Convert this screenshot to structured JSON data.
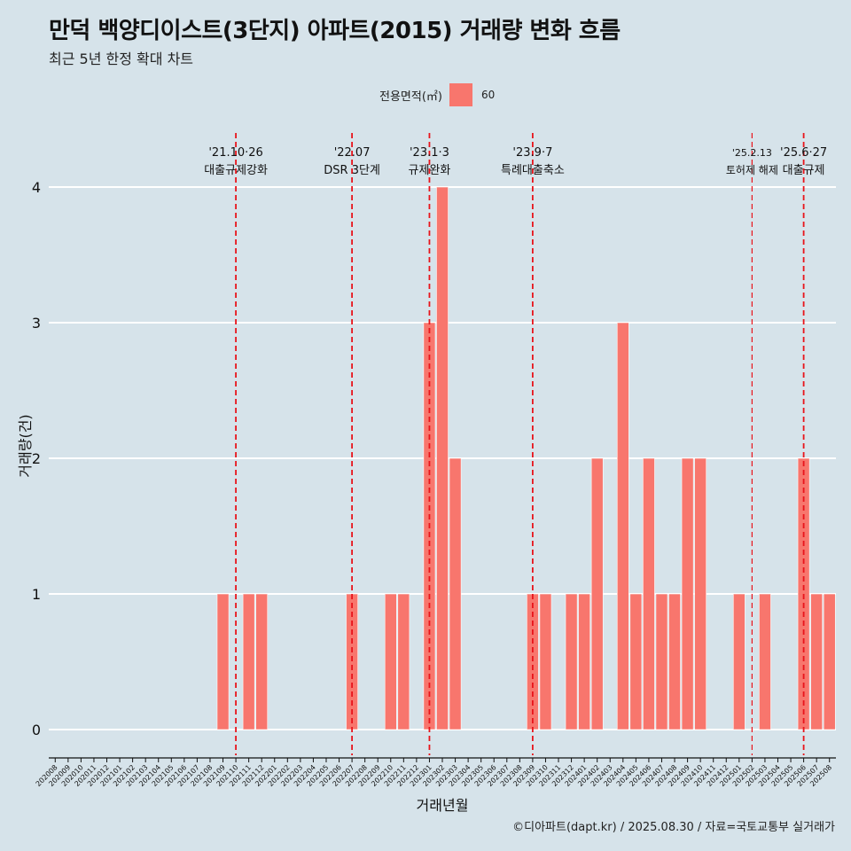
{
  "title": "만덕 백양디이스트(3단지) 아파트(2015) 거래량 변화 흐름",
  "subtitle": "최근 5년 한정 확대 차트",
  "legend": {
    "title": "전용면적(㎡)",
    "label": "60",
    "color": "#f8766d"
  },
  "caption": "©디아파트(dapt.kr) / 2025.08.30 / 자료=국토교통부 실거래가",
  "chart_data": {
    "type": "bar",
    "title": "만덕 백양디이스트(3단지) 아파트(2015) 거래량 변화 흐름",
    "xlabel": "거래년월",
    "ylabel": "거래량(건)",
    "ylim": [
      0,
      4.25
    ],
    "yticks": [
      0,
      1,
      2,
      3,
      4
    ],
    "categories": [
      "202008",
      "202009",
      "202010",
      "202011",
      "202012",
      "202101",
      "202102",
      "202103",
      "202104",
      "202105",
      "202106",
      "202107",
      "202108",
      "202109",
      "202110",
      "202111",
      "202112",
      "202201",
      "202202",
      "202203",
      "202204",
      "202205",
      "202206",
      "202207",
      "202208",
      "202209",
      "202210",
      "202211",
      "202212",
      "202301",
      "202302",
      "202303",
      "202304",
      "202305",
      "202306",
      "202307",
      "202308",
      "202309",
      "202310",
      "202311",
      "202312",
      "202401",
      "202402",
      "202403",
      "202404",
      "202405",
      "202406",
      "202407",
      "202408",
      "202409",
      "202410",
      "202411",
      "202412",
      "202501",
      "202502",
      "202503",
      "202504",
      "202505",
      "202506",
      "202507",
      "202508"
    ],
    "series": [
      {
        "name": "60",
        "color": "#f8766d",
        "values": [
          null,
          null,
          null,
          null,
          null,
          null,
          null,
          null,
          null,
          null,
          null,
          null,
          null,
          1,
          0,
          1,
          1,
          null,
          null,
          null,
          null,
          null,
          null,
          1,
          null,
          null,
          1,
          1,
          null,
          3,
          4,
          2,
          null,
          null,
          null,
          null,
          null,
          1,
          1,
          null,
          1,
          1,
          2,
          null,
          3,
          1,
          2,
          1,
          1,
          2,
          2,
          null,
          null,
          1,
          null,
          1,
          null,
          null,
          2,
          1,
          1
        ]
      }
    ],
    "annotations": [
      {
        "at": "202110",
        "date": "'21.10·26",
        "text": "대출규제강화"
      },
      {
        "at": "202207",
        "date": "'22.07",
        "text": "DSR 3단계"
      },
      {
        "at": "202301",
        "date": "'23.1·3",
        "text": "규제완화"
      },
      {
        "at": "202309",
        "date": "'23.9·7",
        "text": "특례대출축소"
      },
      {
        "at": "202502",
        "date": "'25.2.13",
        "text": "토허제 해제",
        "small": true,
        "thin": true
      },
      {
        "at": "202506",
        "date": "'25.6·27",
        "text": "대출규제"
      }
    ]
  }
}
